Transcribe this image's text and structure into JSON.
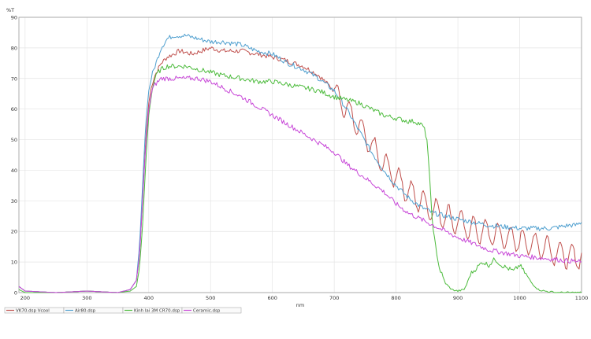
{
  "chart_data": {
    "type": "line",
    "xlabel": "nm",
    "ylabel": "%T",
    "xlim": [
      190,
      1100
    ],
    "ylim": [
      0,
      90
    ],
    "xticks": [
      200,
      300,
      400,
      500,
      600,
      700,
      800,
      900,
      1000,
      1100
    ],
    "yticks": [
      0,
      10,
      20,
      30,
      40,
      50,
      60,
      70,
      80,
      90
    ],
    "grid": true,
    "legend_position": "bottom-left",
    "series": [
      {
        "name": "VK70.dsp  Vcool",
        "color": "#c0504d",
        "x": [
          190,
          200,
          250,
          300,
          350,
          370,
          380,
          385,
          390,
          395,
          400,
          405,
          410,
          415,
          420,
          430,
          450,
          470,
          500,
          520,
          550,
          575,
          600,
          620,
          650,
          675,
          700,
          720,
          740,
          760,
          780,
          800,
          820,
          840,
          860,
          880,
          900,
          920,
          940,
          960,
          980,
          1000,
          1020,
          1040,
          1060,
          1080,
          1090,
          1100
        ],
        "y": [
          2,
          0.5,
          0,
          0.5,
          0,
          1,
          4,
          12,
          30,
          50,
          62,
          68,
          71,
          73,
          75,
          77,
          79,
          78,
          80,
          79,
          79,
          78,
          77,
          76,
          74,
          71,
          66,
          60,
          54,
          48,
          42,
          38,
          33,
          30,
          27,
          25,
          23,
          21,
          20,
          19,
          18,
          17,
          16,
          15,
          13,
          12,
          11,
          13
        ],
        "oscillation": {
          "from": 700,
          "amplitude": 4,
          "period": 20
        }
      },
      {
        "name": "Air80.dsp",
        "color": "#4f9fcf",
        "x": [
          190,
          200,
          250,
          300,
          350,
          370,
          380,
          385,
          390,
          395,
          400,
          405,
          410,
          415,
          420,
          430,
          440,
          460,
          480,
          500,
          520,
          550,
          575,
          600,
          625,
          650,
          675,
          700,
          720,
          740,
          760,
          780,
          800,
          820,
          840,
          860,
          880,
          900,
          950,
          1000,
          1050,
          1080,
          1090,
          1100
        ],
        "y": [
          2,
          0.5,
          0,
          0.5,
          0,
          1,
          4,
          15,
          35,
          55,
          66,
          71,
          74,
          77,
          80,
          83,
          84,
          84,
          83,
          82,
          82,
          81,
          79,
          78,
          75,
          73,
          70,
          66,
          60,
          53,
          46,
          40,
          35,
          31,
          28,
          26,
          25,
          24,
          22,
          21,
          21,
          22,
          22,
          23
        ],
        "oscillation": null
      },
      {
        "name": "Kinh lai 3M CR70.dsp",
        "color": "#4cbb3c",
        "x": [
          190,
          200,
          250,
          300,
          350,
          370,
          380,
          385,
          390,
          395,
          400,
          405,
          410,
          415,
          420,
          430,
          440,
          460,
          480,
          500,
          520,
          550,
          575,
          600,
          625,
          650,
          675,
          700,
          720,
          740,
          760,
          780,
          800,
          820,
          830,
          840,
          845,
          850,
          855,
          860,
          870,
          880,
          890,
          900,
          910,
          915,
          920,
          930,
          940,
          950,
          960,
          970,
          980,
          990,
          1000,
          1010,
          1020,
          1030,
          1040,
          1060,
          1080,
          1100
        ],
        "y": [
          1,
          0,
          0,
          0.5,
          0,
          0.5,
          2,
          8,
          22,
          42,
          58,
          66,
          70,
          72,
          73,
          74,
          74,
          74,
          73,
          72,
          71,
          70,
          69,
          69,
          68,
          67,
          66,
          64,
          63,
          62,
          60,
          58,
          57,
          56,
          56,
          55,
          54,
          50,
          35,
          20,
          8,
          3,
          1,
          0.5,
          1,
          3,
          6,
          8,
          10,
          9,
          11,
          9,
          8,
          7,
          9,
          6,
          3,
          1,
          0.5,
          0,
          0,
          0
        ],
        "oscillation": null
      },
      {
        "name": "Ceramic.dsp",
        "color": "#c848d8",
        "x": [
          190,
          200,
          250,
          300,
          350,
          370,
          380,
          385,
          390,
          395,
          400,
          405,
          410,
          415,
          420,
          430,
          440,
          460,
          480,
          500,
          520,
          550,
          575,
          600,
          625,
          650,
          675,
          700,
          720,
          740,
          760,
          780,
          800,
          820,
          840,
          860,
          880,
          900,
          950,
          1000,
          1050,
          1100
        ],
        "y": [
          2,
          0.5,
          0,
          0.5,
          0,
          1,
          4,
          12,
          30,
          48,
          60,
          66,
          68,
          69,
          70,
          70,
          70,
          70,
          70,
          69,
          67,
          64,
          61,
          58,
          55,
          52,
          49,
          46,
          42,
          39,
          36,
          33,
          29,
          26,
          24,
          22,
          20,
          18,
          14,
          12,
          11,
          10
        ],
        "oscillation": null
      }
    ]
  }
}
